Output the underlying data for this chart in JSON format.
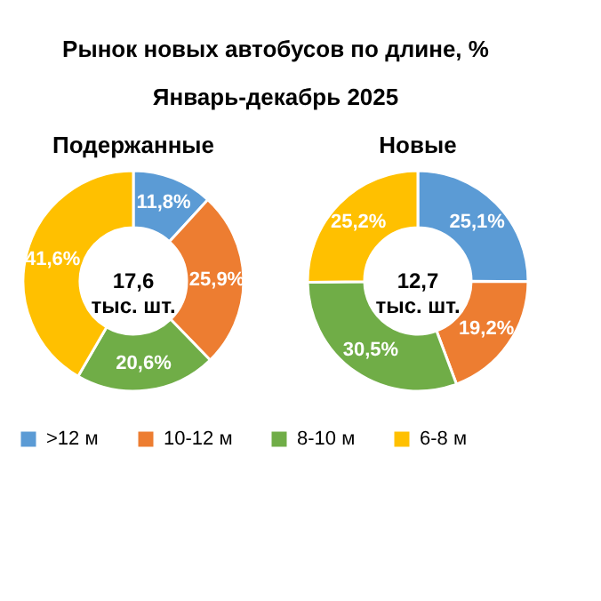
{
  "chart_data": {
    "type": "donut",
    "title": "Рынок новых автобусов по длине, %",
    "subtitle": "Январь-декабрь 2025",
    "categories": [
      ">12 м",
      "10-12 м",
      "8-10 м",
      "6-8 м"
    ],
    "colors": [
      "#5b9bd5",
      "#ed7d31",
      "#70ad47",
      "#ffc000"
    ],
    "legend": "bottom",
    "annotations": [
      "17,6\nтыс. шт.",
      "12,7\nтыс. шт."
    ],
    "series": [
      {
        "name": "Подержанные",
        "values": [
          11.8,
          25.9,
          20.6,
          41.6
        ],
        "value_labels": [
          "11,8%",
          "25,9%",
          "20,6%",
          "41,6%"
        ]
      },
      {
        "name": "Новые",
        "values": [
          25.1,
          19.2,
          30.5,
          25.2
        ],
        "value_labels": [
          "25,1%",
          "19,2%",
          "30,5%",
          "25,2%"
        ]
      }
    ]
  }
}
